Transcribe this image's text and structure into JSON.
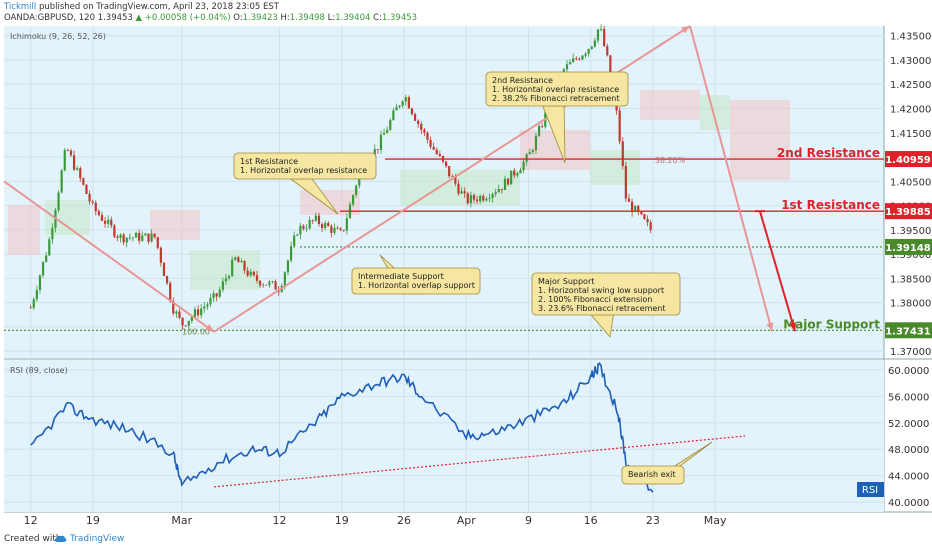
{
  "header": {
    "author": "Tickmill",
    "published": "published on TradingView.com, April 23, 2018 23:05 EST",
    "symbol": "OANDA:GBPUSD, 120",
    "last": "1.39453",
    "change": "▲ +0.00058 (+0.04%)",
    "ohlc": {
      "o_label": "O:",
      "o": "1.39423",
      "h_label": "H:",
      "h": "1.39498",
      "l_label": "L:",
      "l": "1.39404",
      "c_label": "C:",
      "c": "1.39453"
    }
  },
  "indicators": {
    "ichimoku": "Ichimoku (9, 26, 52, 26)",
    "rsi": "RSI (89, close)",
    "rsi_tag": "RSI"
  },
  "footer": {
    "created": "Created with",
    "brand": "TradingView"
  },
  "colors": {
    "background": "#ffffff",
    "plot_bg": "#e3f3fc",
    "grid": "#cfe2ee",
    "up_candle": "#3a9a3a",
    "down_candle": "#c0392b",
    "resistance": "#e0212b",
    "support": "#4a8a2a",
    "rsi_line": "#1e5fb8",
    "callout_bg": "#f5e7a1",
    "callout_border": "#a08a3a",
    "cloud_red": "#f4c2c2",
    "cloud_green": "#c4e8c4",
    "arrow": "#e89595"
  },
  "chart_data": [
    {
      "type": "candlestick",
      "title": "GBPUSD",
      "xlabel": "",
      "ylabel": "",
      "ylim": [
        1.3686,
        1.437
      ],
      "x_tick_labels": [
        "12",
        "19",
        "Mar",
        "12",
        "19",
        "26",
        "Apr",
        "9",
        "16",
        "23",
        "May"
      ],
      "y_tick_labels": [
        "1.43500",
        "1.43000",
        "1.42500",
        "1.42000",
        "1.41500",
        "1.41000",
        "1.40500",
        "1.40000",
        "1.39500",
        "1.39000",
        "1.38500",
        "1.38000",
        "1.37500",
        "1.37000"
      ],
      "series": [
        {
          "name": "price",
          "points": [
            [
              "Feb 12",
              1.379
            ],
            [
              "Feb 14",
              1.392
            ],
            [
              "Feb 16",
              1.412
            ],
            [
              "Feb 19",
              1.3995
            ],
            [
              "Feb 22",
              1.3935
            ],
            [
              "Feb 26",
              1.3935
            ],
            [
              "Feb 28",
              1.379
            ],
            [
              "Mar 1",
              1.3755
            ],
            [
              "Mar 5",
              1.3815
            ],
            [
              "Mar 7",
              1.389
            ],
            [
              "Mar 9",
              1.385
            ],
            [
              "Mar 12",
              1.383
            ],
            [
              "Mar 14",
              1.395
            ],
            [
              "Mar 16",
              1.397
            ],
            [
              "Mar 19",
              1.394
            ],
            [
              "Mar 21",
              1.407
            ],
            [
              "Mar 23",
              1.412
            ],
            [
              "Mar 26",
              1.423
            ],
            [
              "Mar 28",
              1.4155
            ],
            [
              "Apr 2",
              1.401
            ],
            [
              "Apr 4",
              1.402
            ],
            [
              "Apr 6",
              1.404
            ],
            [
              "Apr 9",
              1.41
            ],
            [
              "Apr 11",
              1.419
            ],
            [
              "Apr 13",
              1.428
            ],
            [
              "Apr 16",
              1.433
            ],
            [
              "Apr 17",
              1.437
            ],
            [
              "Apr 18",
              1.429
            ],
            [
              "Apr 19",
              1.418
            ],
            [
              "Apr 20",
              1.401
            ],
            [
              "Apr 23",
              1.3945
            ]
          ]
        }
      ],
      "annotations": [
        {
          "label": "2nd Resistance",
          "value": "1.40959",
          "note": "2nd Resistance\n1. Horizontal overlap resistance\n2. 38.2% Fibonacci retracement"
        },
        {
          "label": "1st Resistance",
          "value": "1.39885",
          "note": "1st Resistance\n1. Horizontal overlap resistance"
        },
        {
          "label": "",
          "value": "1.39148",
          "note": "Intermediate Support\n1. Horizontal overlap support"
        },
        {
          "label": "Major Support",
          "value": "1.37431",
          "note": "Major Support\n1. Horizontal swing low support\n2. 100% Fibonacci extension\n3. 23.6% Fibonacci retracement"
        }
      ],
      "fib_labels": [
        "38.20%",
        "100.00"
      ],
      "price_tags": [
        "1.40959",
        "1.39885",
        "1.39148",
        "1.37431"
      ]
    },
    {
      "type": "line",
      "title": "RSI (89, close)",
      "ylim": [
        38.5,
        61.5
      ],
      "y_tick_labels": [
        "60.0000",
        "56.0000",
        "52.0000",
        "48.0000",
        "44.0000",
        "40.0000"
      ],
      "series": [
        {
          "name": "RSI",
          "points": [
            [
              "Feb 12",
              48.0
            ],
            [
              "Feb 16",
              54.5
            ],
            [
              "Feb 19",
              52.5
            ],
            [
              "Feb 23",
              51.0
            ],
            [
              "Feb 28",
              47.5
            ],
            [
              "Mar 1",
              42.5
            ],
            [
              "Mar 5",
              46.0
            ],
            [
              "Mar 9",
              48.0
            ],
            [
              "Mar 12",
              47.5
            ],
            [
              "Mar 16",
              52.0
            ],
            [
              "Mar 19",
              56.0
            ],
            [
              "Mar 23",
              58.0
            ],
            [
              "Mar 26",
              59.0
            ],
            [
              "Mar 28",
              56.0
            ],
            [
              "Apr 2",
              50.0
            ],
            [
              "Apr 5",
              50.5
            ],
            [
              "Apr 9",
              52.5
            ],
            [
              "Apr 13",
              55.0
            ],
            [
              "Apr 16",
              59.0
            ],
            [
              "Apr 17",
              60.5
            ],
            [
              "Apr 19",
              54.0
            ],
            [
              "Apr 20",
              46.0
            ],
            [
              "Apr 23",
              41.5
            ]
          ]
        }
      ],
      "annotations": [
        {
          "note": "Bearish exit"
        }
      ]
    }
  ]
}
